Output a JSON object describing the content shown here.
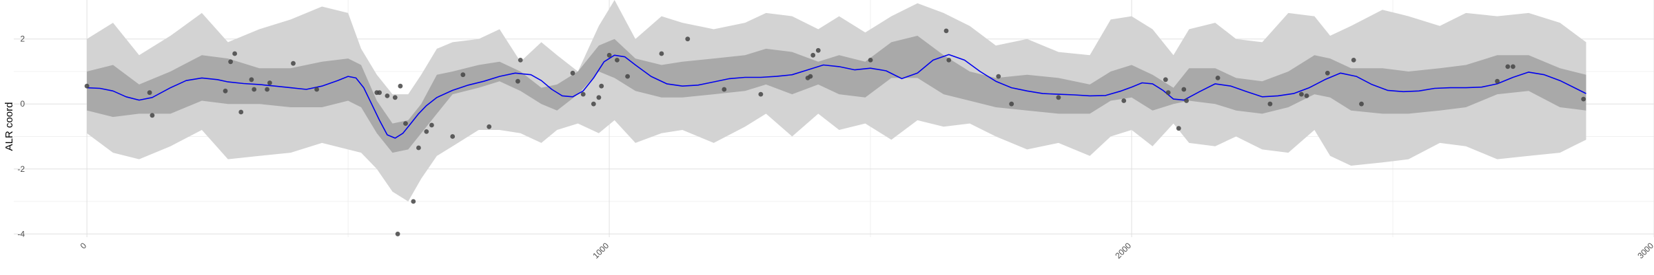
{
  "chart_data": {
    "type": "line",
    "title": "",
    "xlabel": "",
    "ylabel": "ALR coord",
    "xlim": [
      -140,
      3000
    ],
    "ylim": [
      -4.1,
      3.2
    ],
    "grid": true,
    "x_ticks": [
      0,
      1000,
      2000,
      3000
    ],
    "x_tick_labels": [
      "0",
      "1000",
      "2000",
      "3000"
    ],
    "y_ticks": [
      -4,
      -2,
      0,
      2
    ],
    "y_tick_labels": [
      "-4",
      "-2",
      "0",
      "2"
    ],
    "colors": {
      "mean_line": "#0000ee",
      "inner_band": "#a9a9a9",
      "outer_band": "#d3d3d3",
      "points": "#444444",
      "grid_major": "#e0e0e0",
      "grid_minor": "#f0f0f0"
    },
    "series": [
      {
        "kind": "outer-band",
        "x": [
          0,
          50,
          100,
          160,
          220,
          270,
          330,
          390,
          450,
          500,
          525,
          555,
          585,
          615,
          640,
          670,
          700,
          750,
          790,
          830,
          870,
          900,
          940,
          980,
          1010,
          1050,
          1100,
          1140,
          1200,
          1260,
          1300,
          1350,
          1400,
          1440,
          1490,
          1540,
          1590,
          1640,
          1690,
          1740,
          1800,
          1860,
          1920,
          1960,
          2000,
          2040,
          2080,
          2110,
          2160,
          2200,
          2250,
          2300,
          2350,
          2380,
          2420,
          2480,
          2530,
          2590,
          2640,
          2700,
          2760,
          2820,
          2870
        ],
        "lower": [
          -0.9,
          -1.5,
          -1.7,
          -1.3,
          -0.8,
          -1.7,
          -1.6,
          -1.5,
          -1.2,
          -1.4,
          -1.5,
          -2.0,
          -2.7,
          -3.0,
          -2.3,
          -1.6,
          -1.3,
          -0.8,
          -0.8,
          -0.9,
          -1.2,
          -0.8,
          -0.6,
          -0.9,
          -0.5,
          -1.2,
          -0.9,
          -0.8,
          -1.2,
          -0.7,
          -0.3,
          -1.0,
          -0.3,
          -0.8,
          -0.6,
          -1.1,
          -0.5,
          -0.7,
          -0.6,
          -1.0,
          -1.4,
          -1.2,
          -1.6,
          -1.0,
          -0.8,
          -1.3,
          -0.6,
          -1.2,
          -1.3,
          -1.0,
          -1.4,
          -1.5,
          -0.8,
          -1.6,
          -1.9,
          -1.8,
          -1.7,
          -1.2,
          -1.3,
          -1.7,
          -1.6,
          -1.5,
          -1.1
        ],
        "upper": [
          2.0,
          2.5,
          1.5,
          2.1,
          2.8,
          1.9,
          2.3,
          2.6,
          3.0,
          2.8,
          1.7,
          0.9,
          0.3,
          0.3,
          0.9,
          1.7,
          1.9,
          2.0,
          2.3,
          1.3,
          1.9,
          1.5,
          1.0,
          2.4,
          3.2,
          2.0,
          2.7,
          2.5,
          2.3,
          2.5,
          2.8,
          2.7,
          2.3,
          2.7,
          2.2,
          2.7,
          3.1,
          2.8,
          2.4,
          1.8,
          2.0,
          1.6,
          1.5,
          2.6,
          2.7,
          2.3,
          1.5,
          2.3,
          2.5,
          2.0,
          1.9,
          2.8,
          2.7,
          2.1,
          2.4,
          2.9,
          2.7,
          2.4,
          2.8,
          2.7,
          2.8,
          2.5,
          1.9
        ]
      },
      {
        "kind": "inner-band",
        "x": [
          0,
          50,
          100,
          160,
          220,
          270,
          330,
          390,
          450,
          500,
          525,
          555,
          585,
          615,
          640,
          670,
          700,
          750,
          790,
          830,
          870,
          900,
          940,
          980,
          1010,
          1050,
          1100,
          1140,
          1200,
          1260,
          1300,
          1350,
          1400,
          1440,
          1490,
          1540,
          1590,
          1640,
          1690,
          1740,
          1800,
          1860,
          1920,
          1960,
          2000,
          2040,
          2080,
          2110,
          2160,
          2200,
          2250,
          2300,
          2350,
          2380,
          2420,
          2480,
          2530,
          2590,
          2640,
          2700,
          2760,
          2820,
          2870
        ],
        "lower": [
          -0.2,
          -0.4,
          -0.3,
          -0.3,
          0.1,
          0.0,
          0.0,
          -0.1,
          -0.1,
          0.1,
          -0.1,
          -0.9,
          -1.5,
          -1.4,
          -0.9,
          -0.3,
          0.3,
          0.5,
          0.7,
          0.4,
          0.0,
          -0.2,
          0.3,
          1.0,
          0.8,
          0.4,
          0.2,
          0.2,
          0.3,
          0.4,
          0.6,
          0.3,
          0.6,
          0.3,
          0.2,
          0.8,
          0.8,
          0.3,
          0.1,
          -0.1,
          -0.2,
          -0.3,
          -0.3,
          0.1,
          0.2,
          -0.2,
          0.0,
          0.1,
          0.0,
          -0.2,
          -0.3,
          -0.1,
          0.3,
          0.2,
          -0.2,
          -0.3,
          -0.3,
          -0.2,
          -0.1,
          0.3,
          0.4,
          -0.1,
          -0.2
        ],
        "upper": [
          1.0,
          1.2,
          0.6,
          1.0,
          1.5,
          1.4,
          1.1,
          1.1,
          1.3,
          1.4,
          1.2,
          0.1,
          -0.6,
          -0.5,
          0.0,
          0.9,
          1.0,
          1.2,
          1.3,
          1.0,
          0.5,
          0.6,
          1.0,
          1.8,
          2.0,
          1.4,
          1.2,
          1.3,
          1.4,
          1.5,
          1.7,
          1.6,
          1.3,
          1.5,
          1.3,
          1.9,
          2.1,
          1.5,
          1.0,
          0.8,
          0.9,
          0.8,
          0.6,
          1.0,
          1.2,
          0.9,
          0.5,
          1.1,
          1.1,
          0.8,
          0.7,
          1.0,
          1.5,
          1.4,
          1.1,
          1.1,
          1.0,
          1.1,
          1.2,
          1.5,
          1.5,
          1.1,
          0.9
        ]
      },
      {
        "kind": "mean-line",
        "x": [
          0,
          25,
          50,
          75,
          100,
          125,
          160,
          190,
          220,
          250,
          270,
          300,
          330,
          360,
          390,
          420,
          450,
          480,
          500,
          515,
          530,
          545,
          560,
          575,
          590,
          605,
          620,
          635,
          650,
          670,
          700,
          730,
          760,
          790,
          820,
          850,
          870,
          890,
          910,
          930,
          950,
          970,
          990,
          1010,
          1030,
          1050,
          1080,
          1110,
          1140,
          1170,
          1200,
          1230,
          1260,
          1290,
          1320,
          1350,
          1380,
          1410,
          1440,
          1470,
          1500,
          1530,
          1560,
          1590,
          1620,
          1650,
          1680,
          1710,
          1740,
          1770,
          1800,
          1830,
          1860,
          1890,
          1920,
          1950,
          1980,
          2000,
          2020,
          2040,
          2060,
          2080,
          2100,
          2130,
          2160,
          2190,
          2220,
          2250,
          2280,
          2310,
          2340,
          2370,
          2400,
          2430,
          2460,
          2490,
          2520,
          2550,
          2580,
          2610,
          2640,
          2670,
          2700,
          2730,
          2760,
          2790,
          2820,
          2850,
          2870
        ],
        "values": [
          0.5,
          0.48,
          0.4,
          0.22,
          0.12,
          0.2,
          0.5,
          0.72,
          0.8,
          0.75,
          0.68,
          0.63,
          0.6,
          0.55,
          0.5,
          0.45,
          0.55,
          0.72,
          0.85,
          0.8,
          0.5,
          0.0,
          -0.5,
          -0.95,
          -1.05,
          -0.9,
          -0.6,
          -0.3,
          -0.05,
          0.2,
          0.42,
          0.58,
          0.7,
          0.85,
          0.95,
          0.9,
          0.72,
          0.45,
          0.25,
          0.22,
          0.4,
          0.8,
          1.3,
          1.5,
          1.45,
          1.2,
          0.85,
          0.62,
          0.55,
          0.58,
          0.68,
          0.78,
          0.82,
          0.82,
          0.85,
          0.9,
          1.05,
          1.2,
          1.15,
          1.05,
          1.1,
          1.02,
          0.78,
          0.95,
          1.35,
          1.52,
          1.35,
          1.0,
          0.7,
          0.5,
          0.4,
          0.32,
          0.3,
          0.28,
          0.25,
          0.26,
          0.4,
          0.52,
          0.65,
          0.62,
          0.42,
          0.15,
          0.12,
          0.38,
          0.62,
          0.55,
          0.38,
          0.22,
          0.25,
          0.32,
          0.5,
          0.75,
          0.95,
          0.85,
          0.6,
          0.42,
          0.38,
          0.4,
          0.48,
          0.5,
          0.5,
          0.52,
          0.62,
          0.82,
          0.98,
          0.9,
          0.72,
          0.48,
          0.32
        ]
      },
      {
        "kind": "points",
        "x": [
          0,
          120,
          125,
          265,
          275,
          283,
          295,
          315,
          320,
          345,
          350,
          395,
          440,
          555,
          560,
          575,
          590,
          595,
          600,
          610,
          625,
          635,
          650,
          660,
          700,
          720,
          770,
          825,
          830,
          930,
          950,
          970,
          980,
          985,
          1000,
          1015,
          1035,
          1100,
          1150,
          1220,
          1290,
          1380,
          1385,
          1390,
          1400,
          1500,
          1645,
          1650,
          1745,
          1770,
          1860,
          1985,
          2065,
          2070,
          2090,
          2100,
          2105,
          2165,
          2265,
          2325,
          2335,
          2375,
          2425,
          2440,
          2700,
          2720,
          2730,
          2865
        ],
        "values": [
          0.55,
          0.35,
          -0.35,
          0.4,
          1.3,
          1.55,
          -0.25,
          0.75,
          0.45,
          0.45,
          0.65,
          1.25,
          0.45,
          0.35,
          0.35,
          0.25,
          0.2,
          -4.0,
          0.55,
          -0.6,
          -3.0,
          -1.35,
          -0.85,
          -0.65,
          -1.0,
          0.9,
          -0.7,
          0.7,
          1.35,
          0.95,
          0.3,
          0.0,
          0.2,
          0.55,
          1.5,
          1.35,
          0.85,
          1.55,
          2.0,
          0.45,
          0.3,
          0.8,
          0.85,
          1.5,
          1.65,
          1.35,
          2.25,
          1.35,
          0.85,
          0.0,
          0.2,
          0.1,
          0.75,
          0.35,
          -0.75,
          0.45,
          0.1,
          0.8,
          0.0,
          0.3,
          0.25,
          0.95,
          1.35,
          0.0,
          0.7,
          1.15,
          1.15,
          0.15
        ]
      }
    ]
  }
}
